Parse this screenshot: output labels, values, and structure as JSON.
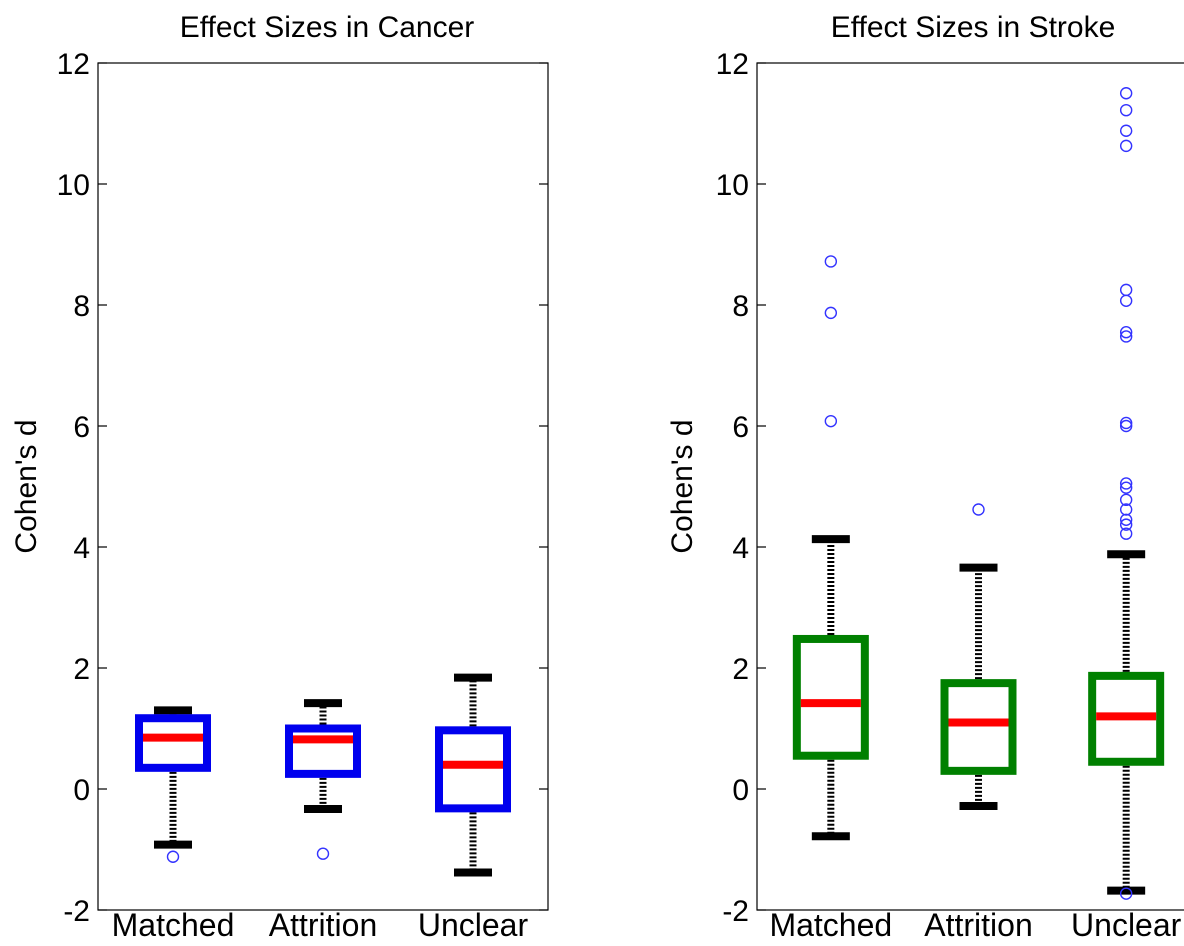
{
  "chart_data": [
    {
      "type": "box",
      "title": "Effect Sizes in Cancer",
      "xlabel": "",
      "ylabel": "Cohen's d",
      "ylim": [
        -2,
        12
      ],
      "yticks": [
        -2,
        0,
        2,
        4,
        6,
        8,
        10,
        12
      ],
      "categories": [
        "Matched",
        "Attrition",
        "Unclear"
      ],
      "box_color": "#0000ee",
      "median_color": "#ff0000",
      "whisker_color": "#000000",
      "outlier_color": "#3333ff",
      "boxes": [
        {
          "category": "Matched",
          "whisker_low": -0.92,
          "q1": 0.35,
          "median": 0.85,
          "q3": 1.17,
          "whisker_high": 1.3,
          "outliers": [
            -1.12
          ]
        },
        {
          "category": "Attrition",
          "whisker_low": -0.33,
          "q1": 0.25,
          "median": 0.82,
          "q3": 1.0,
          "whisker_high": 1.42,
          "outliers": [
            -1.07
          ]
        },
        {
          "category": "Unclear",
          "whisker_low": -1.38,
          "q1": -0.32,
          "median": 0.4,
          "q3": 0.97,
          "whisker_high": 1.84,
          "outliers": []
        }
      ]
    },
    {
      "type": "box",
      "title": "Effect Sizes in Stroke",
      "xlabel": "",
      "ylabel": "Cohen's d",
      "ylim": [
        -2,
        12
      ],
      "yticks": [
        -2,
        0,
        2,
        4,
        6,
        8,
        10,
        12
      ],
      "categories": [
        "Matched",
        "Attrition",
        "Unclear"
      ],
      "box_color": "#008000",
      "median_color": "#ff0000",
      "whisker_color": "#000000",
      "outlier_color": "#3333ff",
      "boxes": [
        {
          "category": "Matched",
          "whisker_low": -0.78,
          "q1": 0.55,
          "median": 1.42,
          "q3": 2.48,
          "whisker_high": 4.13,
          "outliers": [
            6.08,
            7.87,
            8.72
          ]
        },
        {
          "category": "Attrition",
          "whisker_low": -0.28,
          "q1": 0.3,
          "median": 1.1,
          "q3": 1.75,
          "whisker_high": 3.66,
          "outliers": [
            4.62
          ]
        },
        {
          "category": "Unclear",
          "whisker_low": -1.68,
          "q1": 0.45,
          "median": 1.2,
          "q3": 1.87,
          "whisker_high": 3.88,
          "outliers": [
            4.22,
            4.37,
            4.45,
            4.62,
            4.78,
            4.98,
            5.05,
            6.0,
            6.05,
            7.48,
            7.55,
            8.07,
            8.25,
            10.63,
            10.88,
            11.22,
            11.5,
            -1.73
          ]
        }
      ]
    }
  ]
}
